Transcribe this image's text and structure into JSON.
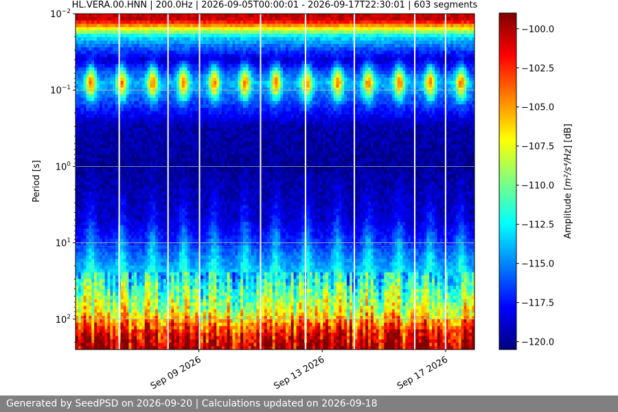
{
  "chart_data": {
    "type": "heatmap",
    "title": "HL.VERA.00.HNN | 200.0Hz | 2026-09-05T00:00:01 - 2026-09-17T22:30:01 | 603 segments",
    "xlabel": "",
    "ylabel": "Period [s]",
    "y_scale": "log",
    "y_inverted": true,
    "ylim": [
      0.01,
      250
    ],
    "xlim": [
      "2026-09-05T00:00:01",
      "2026-09-17T22:30:01"
    ],
    "x_ticks": [
      {
        "value": "2026-09-09",
        "label": "Sep 09 2026"
      },
      {
        "value": "2026-09-13",
        "label": "Sep 13 2026"
      },
      {
        "value": "2026-09-17",
        "label": "Sep 17 2026"
      }
    ],
    "y_ticks": [
      {
        "value": 0.01,
        "label": "10",
        "exp": "−2"
      },
      {
        "value": 0.1,
        "label": "10",
        "exp": "−1"
      },
      {
        "value": 1,
        "label": "10",
        "exp": "0"
      },
      {
        "value": 10,
        "label": "10",
        "exp": "1"
      },
      {
        "value": 100,
        "label": "10",
        "exp": "2"
      }
    ],
    "grid": true,
    "colorbar": {
      "label_prefix": "Amplitude [",
      "label_math": "m²/s⁴/Hz",
      "label_suffix": "] [dB]",
      "range": [
        -120.5,
        -99.0
      ],
      "ticks": [
        -100.0,
        -102.5,
        -105.0,
        -107.5,
        -110.0,
        -112.5,
        -115.0,
        -117.5,
        -120.0
      ],
      "tick_labels": [
        "−100.0",
        "−102.5",
        "−105.0",
        "−107.5",
        "−110.0",
        "−112.5",
        "−115.0",
        "−117.5",
        "−120.0"
      ],
      "colormap": "jet"
    },
    "series": [
      {
        "period_s": 0.012,
        "amplitude_db": -100.5
      },
      {
        "period_s": 0.02,
        "amplitude_db": -113.0
      },
      {
        "period_s": 0.04,
        "amplitude_db": -119.0
      },
      {
        "period_s": 0.08,
        "amplitude_db": -114.0
      },
      {
        "period_s": 0.3,
        "amplitude_db": -119.5
      },
      {
        "period_s": 1.0,
        "amplitude_db": -120.0
      },
      {
        "period_s": 5.0,
        "amplitude_db": -119.0
      },
      {
        "period_s": 10.0,
        "amplitude_db": -117.0
      },
      {
        "period_s": 30.0,
        "amplitude_db": -113.0
      },
      {
        "period_s": 80.0,
        "amplitude_db": -108.0
      },
      {
        "period_s": 150.0,
        "amplitude_db": -102.0
      },
      {
        "period_s": 240.0,
        "amplitude_db": -100.0
      }
    ],
    "daily_hotspot_period_s": 0.08,
    "gap_dates": [
      "2026-09-06T10:00",
      "2026-09-08T00:00",
      "2026-09-09T00:30",
      "2026-09-11T00:00",
      "2026-09-12T11:00",
      "2026-09-14T01:00",
      "2026-09-16T00:00",
      "2026-09-17T00:00"
    ]
  },
  "footer": {
    "text": "Generated by SeedPSD on 2026-09-20 | Calculations updated on 2026-09-18"
  }
}
